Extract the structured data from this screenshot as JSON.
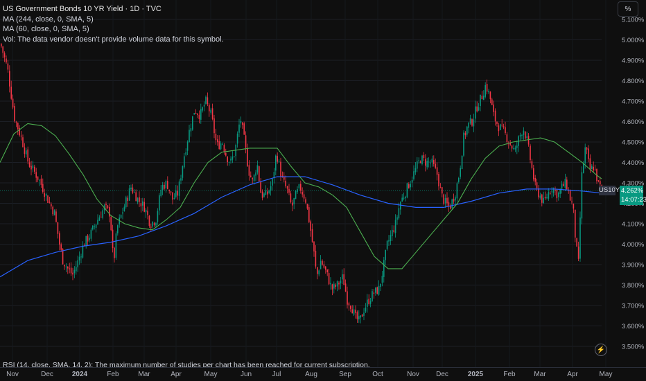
{
  "legend": {
    "title": "US Government Bonds 10 YR Yield · 1D · TVC",
    "ma1": "MA (244, close, 0, SMA, 5)",
    "ma2": "MA (60, close, 0, SMA, 5)",
    "vol": "Vol: The data vendor doesn't provide volume data for this symbol."
  },
  "scale_button": "%",
  "price_tag": "US10Y",
  "last_price": "4.262%",
  "countdown": "14:07:23",
  "rsi_note": "RSI (14, close, SMA, 14, 2): The maximum number of studies per chart has been reached for current subscription.",
  "icons": {
    "alert": "lightning-icon"
  },
  "colors": {
    "background": "#0f0f0f",
    "up": "#089981",
    "down": "#f23645",
    "ma_long": "#2962ff",
    "ma_short": "#4caf50",
    "last_price": "#089981"
  },
  "chart_data": {
    "type": "candlestick",
    "x_labels": [
      "Nov",
      "Dec",
      "2024",
      "Feb",
      "Mar",
      "Apr",
      "May",
      "Jun",
      "Jul",
      "Aug",
      "Sep",
      "Oct",
      "Nov",
      "Dec",
      "2025",
      "Feb",
      "Mar",
      "Apr",
      "May"
    ],
    "y_ticks": [
      "5.100%",
      "5.000%",
      "4.900%",
      "4.800%",
      "4.700%",
      "4.600%",
      "4.500%",
      "4.400%",
      "4.300%",
      "4.200%",
      "4.100%",
      "4.000%",
      "3.900%",
      "3.800%",
      "3.700%",
      "3.600%",
      "3.500%"
    ],
    "ylim": [
      3.48,
      5.12
    ],
    "close_path": [
      [
        0,
        4.98
      ],
      [
        10,
        4.86
      ],
      [
        20,
        4.62
      ],
      [
        30,
        4.52
      ],
      [
        40,
        4.4
      ],
      [
        55,
        4.32
      ],
      [
        68,
        4.22
      ],
      [
        78,
        4.15
      ],
      [
        85,
        4.0
      ],
      [
        90,
        3.92
      ],
      [
        97,
        3.88
      ],
      [
        104,
        3.85
      ],
      [
        110,
        3.9
      ],
      [
        120,
        4.0
      ],
      [
        130,
        4.05
      ],
      [
        140,
        4.12
      ],
      [
        150,
        4.18
      ],
      [
        158,
        4.15
      ],
      [
        163,
        3.9
      ],
      [
        168,
        4.08
      ],
      [
        178,
        4.18
      ],
      [
        188,
        4.28
      ],
      [
        198,
        4.22
      ],
      [
        208,
        4.18
      ],
      [
        216,
        4.1
      ],
      [
        224,
        4.12
      ],
      [
        232,
        4.28
      ],
      [
        240,
        4.3
      ],
      [
        248,
        4.22
      ],
      [
        256,
        4.25
      ],
      [
        264,
        4.42
      ],
      [
        272,
        4.55
      ],
      [
        280,
        4.66
      ],
      [
        288,
        4.63
      ],
      [
        296,
        4.7
      ],
      [
        304,
        4.63
      ],
      [
        312,
        4.48
      ],
      [
        320,
        4.5
      ],
      [
        326,
        4.43
      ],
      [
        332,
        4.4
      ],
      [
        338,
        4.45
      ],
      [
        346,
        4.62
      ],
      [
        352,
        4.5
      ],
      [
        358,
        4.36
      ],
      [
        364,
        4.3
      ],
      [
        370,
        4.4
      ],
      [
        376,
        4.24
      ],
      [
        384,
        4.24
      ],
      [
        392,
        4.3
      ],
      [
        398,
        4.45
      ],
      [
        406,
        4.32
      ],
      [
        414,
        4.26
      ],
      [
        420,
        4.18
      ],
      [
        426,
        4.24
      ],
      [
        432,
        4.28
      ],
      [
        440,
        4.22
      ],
      [
        446,
        4.1
      ],
      [
        452,
        3.96
      ],
      [
        456,
        3.84
      ],
      [
        462,
        3.92
      ],
      [
        470,
        3.86
      ],
      [
        478,
        3.78
      ],
      [
        486,
        3.8
      ],
      [
        494,
        3.84
      ],
      [
        500,
        3.73
      ],
      [
        506,
        3.7
      ],
      [
        512,
        3.64
      ],
      [
        518,
        3.62
      ],
      [
        524,
        3.68
      ],
      [
        530,
        3.72
      ],
      [
        538,
        3.76
      ],
      [
        546,
        3.78
      ],
      [
        552,
        3.88
      ],
      [
        558,
        4.0
      ],
      [
        564,
        4.05
      ],
      [
        570,
        4.1
      ],
      [
        576,
        4.2
      ],
      [
        582,
        4.24
      ],
      [
        590,
        4.3
      ],
      [
        598,
        4.36
      ],
      [
        606,
        4.42
      ],
      [
        614,
        4.4
      ],
      [
        622,
        4.4
      ],
      [
        630,
        4.34
      ],
      [
        636,
        4.24
      ],
      [
        642,
        4.2
      ],
      [
        648,
        4.18
      ],
      [
        656,
        4.25
      ],
      [
        662,
        4.35
      ],
      [
        668,
        4.52
      ],
      [
        674,
        4.58
      ],
      [
        680,
        4.6
      ],
      [
        688,
        4.68
      ],
      [
        694,
        4.72
      ],
      [
        700,
        4.78
      ],
      [
        706,
        4.72
      ],
      [
        712,
        4.62
      ],
      [
        718,
        4.58
      ],
      [
        726,
        4.55
      ],
      [
        734,
        4.5
      ],
      [
        742,
        4.45
      ],
      [
        748,
        4.52
      ],
      [
        754,
        4.57
      ],
      [
        760,
        4.5
      ],
      [
        766,
        4.38
      ],
      [
        772,
        4.27
      ],
      [
        778,
        4.24
      ],
      [
        784,
        4.2
      ],
      [
        790,
        4.25
      ],
      [
        796,
        4.28
      ],
      [
        804,
        4.24
      ],
      [
        810,
        4.28
      ],
      [
        816,
        4.3
      ],
      [
        822,
        4.22
      ],
      [
        826,
        4.18
      ],
      [
        830,
        4.0
      ],
      [
        834,
        3.9
      ],
      [
        838,
        4.32
      ],
      [
        844,
        4.48
      ],
      [
        850,
        4.36
      ],
      [
        856,
        4.38
      ],
      [
        862,
        4.3
      ],
      [
        868,
        4.26
      ]
    ],
    "ma_244_path": [
      [
        0,
        3.84
      ],
      [
        40,
        3.92
      ],
      [
        80,
        3.96
      ],
      [
        120,
        3.99
      ],
      [
        160,
        4.01
      ],
      [
        200,
        4.04
      ],
      [
        240,
        4.09
      ],
      [
        280,
        4.15
      ],
      [
        320,
        4.23
      ],
      [
        360,
        4.29
      ],
      [
        400,
        4.33
      ],
      [
        440,
        4.33
      ],
      [
        480,
        4.29
      ],
      [
        520,
        4.24
      ],
      [
        560,
        4.2
      ],
      [
        600,
        4.18
      ],
      [
        640,
        4.18
      ],
      [
        680,
        4.21
      ],
      [
        720,
        4.25
      ],
      [
        760,
        4.27
      ],
      [
        800,
        4.27
      ],
      [
        840,
        4.26
      ],
      [
        868,
        4.25
      ]
    ],
    "ma_60_path": [
      [
        0,
        4.4
      ],
      [
        20,
        4.54
      ],
      [
        40,
        4.59
      ],
      [
        60,
        4.58
      ],
      [
        80,
        4.53
      ],
      [
        100,
        4.44
      ],
      [
        120,
        4.34
      ],
      [
        140,
        4.22
      ],
      [
        160,
        4.14
      ],
      [
        180,
        4.1
      ],
      [
        200,
        4.08
      ],
      [
        220,
        4.07
      ],
      [
        240,
        4.12
      ],
      [
        260,
        4.18
      ],
      [
        280,
        4.3
      ],
      [
        300,
        4.4
      ],
      [
        320,
        4.45
      ],
      [
        340,
        4.46
      ],
      [
        360,
        4.47
      ],
      [
        380,
        4.47
      ],
      [
        400,
        4.47
      ],
      [
        420,
        4.38
      ],
      [
        440,
        4.3
      ],
      [
        460,
        4.28
      ],
      [
        480,
        4.24
      ],
      [
        500,
        4.18
      ],
      [
        520,
        4.06
      ],
      [
        540,
        3.94
      ],
      [
        560,
        3.88
      ],
      [
        580,
        3.88
      ],
      [
        600,
        3.96
      ],
      [
        620,
        4.04
      ],
      [
        640,
        4.12
      ],
      [
        660,
        4.2
      ],
      [
        680,
        4.32
      ],
      [
        700,
        4.42
      ],
      [
        720,
        4.48
      ],
      [
        740,
        4.5
      ],
      [
        760,
        4.51
      ],
      [
        780,
        4.52
      ],
      [
        800,
        4.5
      ],
      [
        820,
        4.45
      ],
      [
        840,
        4.4
      ],
      [
        860,
        4.34
      ],
      [
        868,
        4.32
      ]
    ],
    "last_value": 4.262,
    "ylabel": "%"
  }
}
